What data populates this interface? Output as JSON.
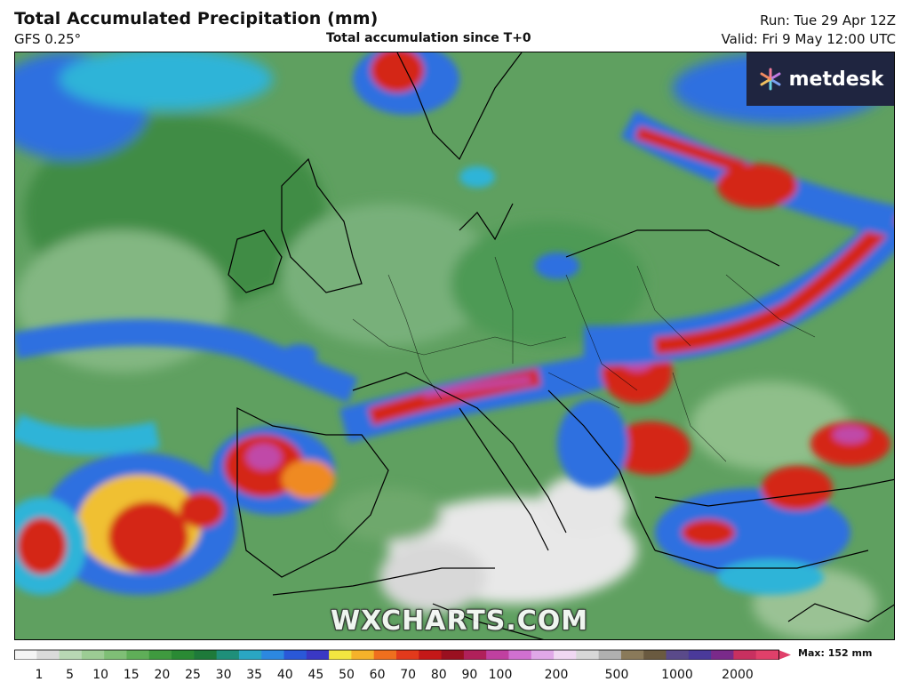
{
  "header": {
    "title": "Total Accumulated Precipitation (mm)",
    "model": "GFS 0.25°",
    "subtitle": "Total accumulation since T+0",
    "run": "Run: Tue 29 Apr 12Z",
    "valid": "Valid: Fri 9 May 12:00 UTC"
  },
  "logo": {
    "text": "metdesk",
    "icon": "metdesk-star-icon"
  },
  "watermark": "WXCHARTS.COM",
  "legend": {
    "max_label": "Max: 152 mm",
    "ticks": [
      "1",
      "5",
      "10",
      "15",
      "20",
      "25",
      "30",
      "35",
      "40",
      "45",
      "50",
      "60",
      "70",
      "80",
      "90",
      "100",
      "200",
      "500",
      "1000",
      "2000"
    ],
    "colors": [
      "#f4f4f4",
      "#dadada",
      "#b8d8b4",
      "#9ccc94",
      "#7fbf76",
      "#5fae58",
      "#3f9a3f",
      "#2a8a34",
      "#1e7a3a",
      "#1f8f7a",
      "#2aa6c2",
      "#2c88e0",
      "#2a58d8",
      "#3a38c4",
      "#f2e640",
      "#f5b22a",
      "#ef6f1e",
      "#e23a1c",
      "#c41818",
      "#9a1020",
      "#b0205a",
      "#c040a0",
      "#d070d0",
      "#e0a8e8",
      "#f0d8f2",
      "#d8d8d8",
      "#b0b0b0",
      "#8a7a5a",
      "#6a5a40",
      "#5a4a8a",
      "#4a3a9a",
      "#7a2a8a",
      "#c83060",
      "#e0406a"
    ]
  },
  "colors": {
    "ocean_green": "#5f9e62",
    "deep_green": "#3e8a45",
    "light_green": "#86b784",
    "blue": "#2f6fe0",
    "cyan": "#2fb4d8",
    "red": "#d42818",
    "orange": "#ef8a20",
    "purple": "#c04aa8",
    "white": "#f0f0f0",
    "logo_bg": "#1f2540"
  }
}
